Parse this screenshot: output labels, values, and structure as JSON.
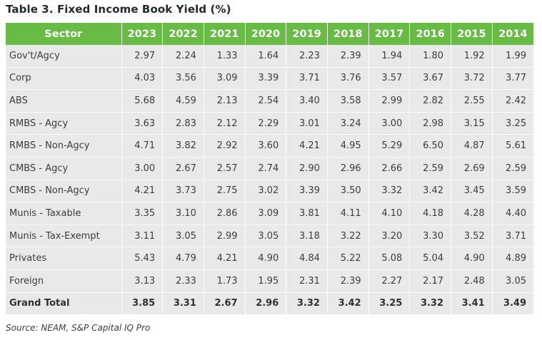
{
  "title": "Table 3. Fixed Income Book Yield (%)",
  "table": {
    "sector_header": "Sector",
    "years": [
      "2023",
      "2022",
      "2021",
      "2020",
      "2019",
      "2018",
      "2017",
      "2016",
      "2015",
      "2014"
    ],
    "rows": [
      {
        "sector": "Gov't/Agcy",
        "values": [
          "2.97",
          "2.24",
          "1.33",
          "1.64",
          "2.23",
          "2.39",
          "1.94",
          "1.80",
          "1.92",
          "1.99"
        ]
      },
      {
        "sector": "Corp",
        "values": [
          "4.03",
          "3.56",
          "3.09",
          "3.39",
          "3.71",
          "3.76",
          "3.57",
          "3.67",
          "3.72",
          "3.77"
        ]
      },
      {
        "sector": "ABS",
        "values": [
          "5.68",
          "4.59",
          "2.13",
          "2.54",
          "3.40",
          "3.58",
          "2.99",
          "2.82",
          "2.55",
          "2.42"
        ]
      },
      {
        "sector": "RMBS - Agcy",
        "values": [
          "3.63",
          "2.83",
          "2.12",
          "2.29",
          "3.01",
          "3.24",
          "3.00",
          "2.98",
          "3.15",
          "3.25"
        ]
      },
      {
        "sector": "RMBS - Non-Agcy",
        "values": [
          "4.71",
          "3.82",
          "2.92",
          "3.60",
          "4.21",
          "4.95",
          "5.29",
          "6.50",
          "4.87",
          "5.61"
        ]
      },
      {
        "sector": "CMBS - Agcy",
        "values": [
          "3.00",
          "2.67",
          "2.57",
          "2.74",
          "2.90",
          "2.96",
          "2.66",
          "2.59",
          "2.69",
          "2.59"
        ]
      },
      {
        "sector": "CMBS - Non-Agcy",
        "values": [
          "4.21",
          "3.73",
          "2.75",
          "3.02",
          "3.39",
          "3.50",
          "3.32",
          "3.42",
          "3.45",
          "3.59"
        ]
      },
      {
        "sector": "Munis - Taxable",
        "values": [
          "3.35",
          "3.10",
          "2.86",
          "3.09",
          "3.81",
          "4.11",
          "4.10",
          "4.18",
          "4.28",
          "4.40"
        ]
      },
      {
        "sector": "Munis - Tax-Exempt",
        "values": [
          "3.11",
          "3.05",
          "2.99",
          "3.05",
          "3.18",
          "3.22",
          "3.20",
          "3.30",
          "3.52",
          "3.71"
        ]
      },
      {
        "sector": "Privates",
        "values": [
          "5.43",
          "4.79",
          "4.21",
          "4.90",
          "4.84",
          "5.22",
          "5.08",
          "5.04",
          "4.90",
          "4.89"
        ]
      },
      {
        "sector": "Foreign",
        "values": [
          "3.13",
          "2.33",
          "1.73",
          "1.95",
          "2.31",
          "2.39",
          "2.27",
          "2.17",
          "2.48",
          "3.05"
        ]
      }
    ],
    "total": {
      "sector": "Grand Total",
      "values": [
        "3.85",
        "3.31",
        "2.67",
        "2.96",
        "3.32",
        "3.42",
        "3.25",
        "3.32",
        "3.41",
        "3.49"
      ]
    }
  },
  "source": "Source: NEAM, S&P Capital IQ Pro",
  "colors": {
    "header_bg": "#68bb45",
    "header_text": "#ffffff",
    "row_bg": "#e9e9ea",
    "text": "#3a3d40"
  }
}
